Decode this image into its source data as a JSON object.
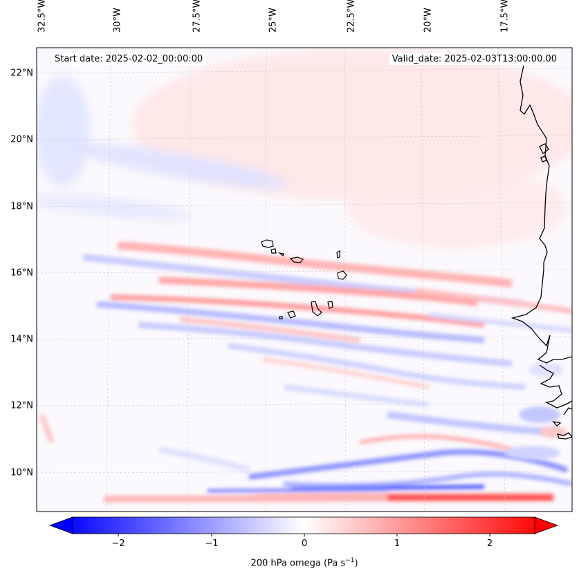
{
  "map": {
    "start_label": "Start date: 2025-02-02_00:00:00",
    "valid_label": "Valid_date: 2025-02-03T13:00:00.00",
    "lon_labels": [
      "32.5°W",
      "30°W",
      "27.5°W",
      "25°W",
      "22.5°W",
      "20°W",
      "17.5°W"
    ],
    "lat_labels": [
      "22°N",
      "20°N",
      "18°N",
      "16°N",
      "14°N",
      "12°N",
      "10°N"
    ],
    "variable": "200 hPa omega",
    "units": "Pa s",
    "units_exponent": "−1"
  },
  "colorbar": {
    "ticks": [
      "−2",
      "−1",
      "0",
      "1",
      "2"
    ],
    "min": -2.7,
    "max": 2.7,
    "low_color": "#0000ff",
    "mid_color": "#ffffff",
    "high_color": "#ff0000"
  }
}
